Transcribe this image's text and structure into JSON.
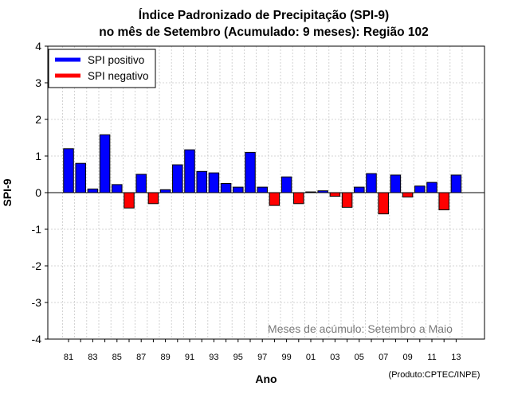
{
  "chart_data": {
    "type": "bar",
    "title_line1": "Índice Padronizado de Precipitação (SPI-9)",
    "title_line2": "no mês de Setembro (Acumulado: 9 meses): Região 102",
    "xlabel": "Ano",
    "ylabel": "SPI-9",
    "ylim": [
      -4,
      4
    ],
    "yticks": [
      "4",
      "3",
      "2",
      "1",
      "0",
      "-1",
      "-2",
      "-3",
      "-4"
    ],
    "xtick_labels": [
      "81",
      "83",
      "85",
      "87",
      "89",
      "91",
      "93",
      "95",
      "97",
      "99",
      "01",
      "03",
      "05",
      "07",
      "09",
      "11",
      "13"
    ],
    "categories": [
      "1981",
      "1982",
      "1983",
      "1984",
      "1985",
      "1986",
      "1987",
      "1988",
      "1989",
      "1990",
      "1991",
      "1992",
      "1993",
      "1994",
      "1995",
      "1996",
      "1997",
      "1998",
      "1999",
      "2000",
      "2001",
      "2002",
      "2003",
      "2004",
      "2005",
      "2006",
      "2007",
      "2008",
      "2009",
      "2010",
      "2011",
      "2012",
      "2013"
    ],
    "values": [
      1.2,
      0.8,
      0.1,
      1.58,
      0.22,
      -0.42,
      0.5,
      -0.3,
      0.08,
      0.76,
      1.17,
      0.58,
      0.54,
      0.25,
      0.15,
      1.1,
      0.15,
      -0.35,
      0.43,
      -0.3,
      0.02,
      0.05,
      -0.1,
      -0.4,
      0.15,
      0.52,
      -0.58,
      0.48,
      -0.12,
      0.18,
      0.28,
      -0.47,
      0.48
    ],
    "legend": [
      {
        "label": "SPI positivo",
        "color": "#0000ff"
      },
      {
        "label": "SPI negativo",
        "color": "#ff0000"
      }
    ],
    "legend_position": "top-left",
    "grid": true,
    "annotation": "Meses de acúmulo: Setembro a Maio",
    "credit": "(Produto:CPTEC/INPE)"
  },
  "colors": {
    "positive": "#0000ff",
    "negative": "#ff0000",
    "grid": "#c8c8c8",
    "annotation": "#7a7a7a"
  }
}
